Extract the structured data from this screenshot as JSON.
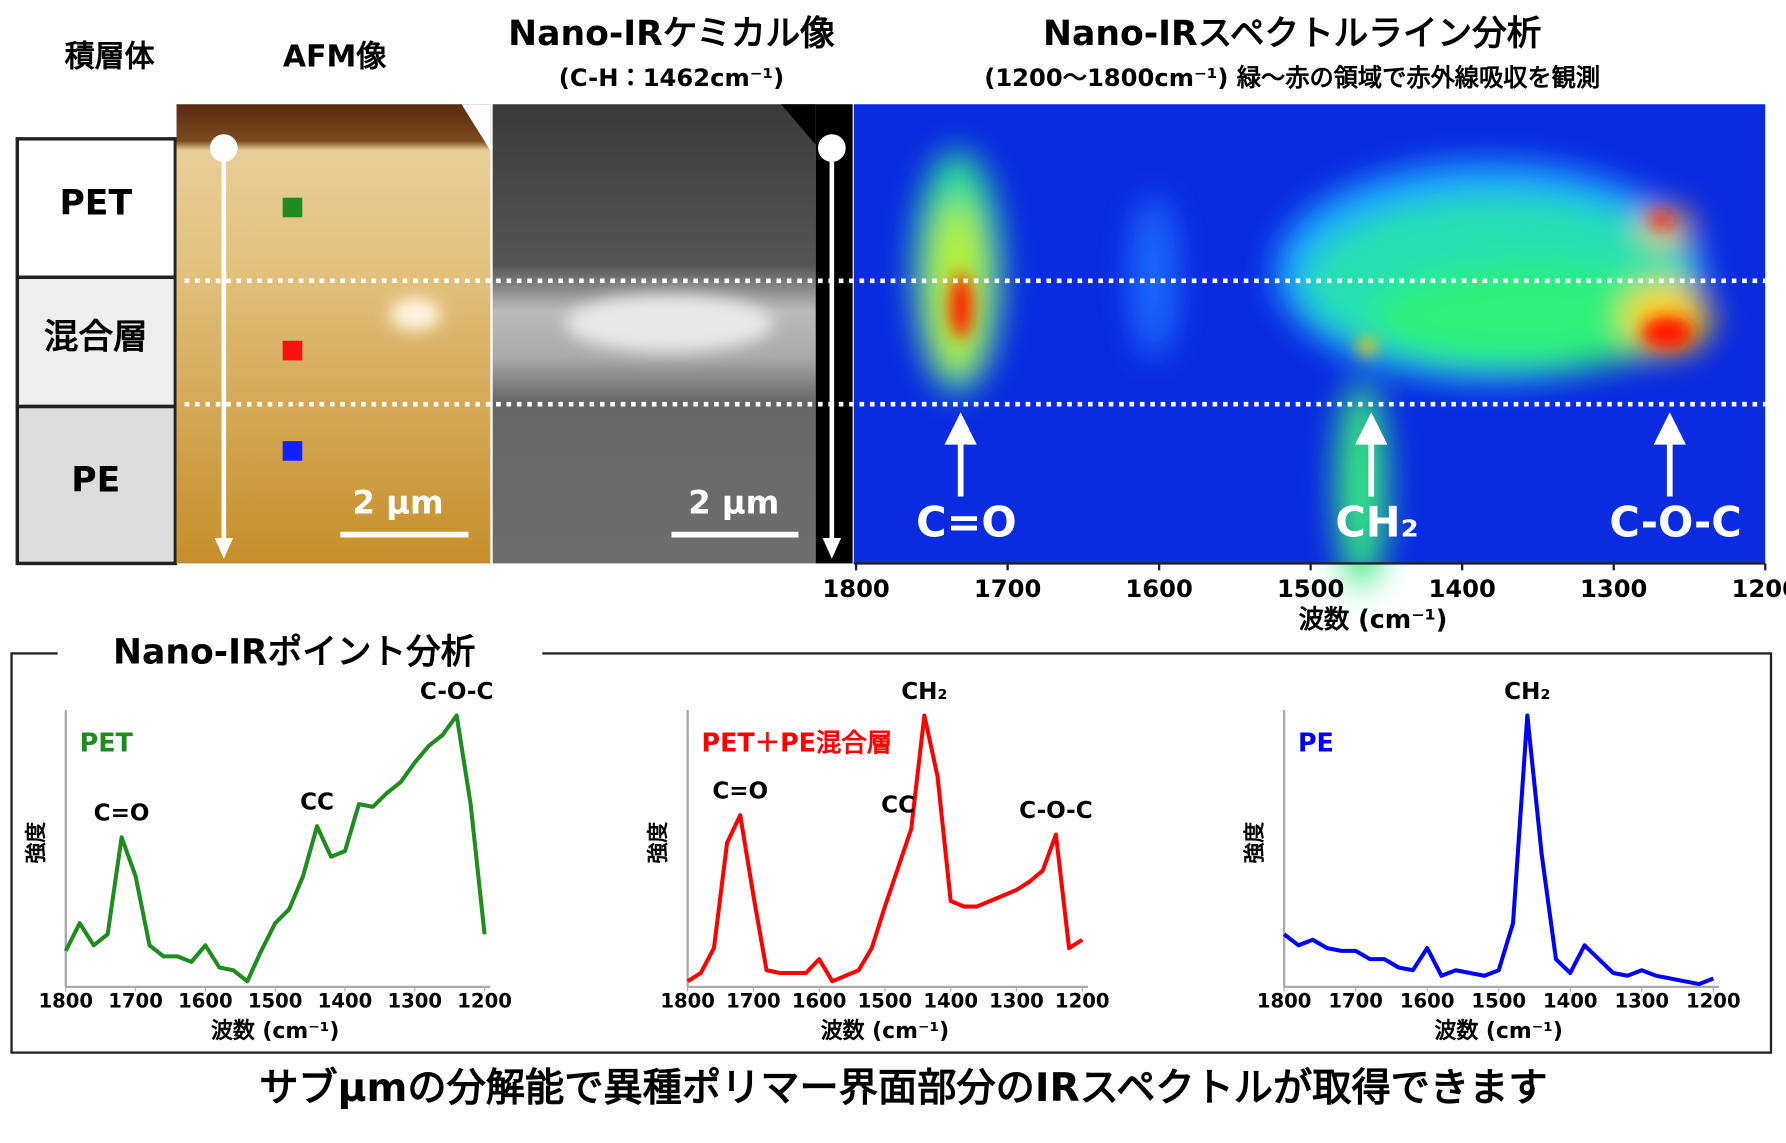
{
  "header": {
    "layer_col": "積層体",
    "afm_col": "AFM像",
    "chem_col": "Nano-IRケミカル像",
    "chem_sub": "(C-H：1462cm⁻¹)",
    "line_col": "Nano-IRスペクトルライン分析",
    "line_sub": "(1200〜1800cm⁻¹) 緑〜赤の領域で赤外線吸収を観測"
  },
  "layers": [
    "PET",
    "混合層",
    "PE"
  ],
  "scale_bars": [
    "2 μm",
    "2 μm"
  ],
  "line_analysis": {
    "xlim": [
      1800,
      1200
    ],
    "xticks": [
      1800,
      1700,
      1600,
      1500,
      1400,
      1300,
      1200
    ],
    "xlabel": "波数 (cm⁻¹)",
    "peaks": [
      {
        "label": "C=O",
        "x": 1731
      },
      {
        "label": "CH₂",
        "x": 1460
      },
      {
        "label": "C-O-C",
        "x": 1263
      }
    ]
  },
  "point_title": "Nano-IRポイント分析",
  "chart_data": [
    {
      "type": "line",
      "xlim": [
        1800,
        1200
      ],
      "ylim": [
        0,
        100
      ],
      "xticks": [
        1800,
        1700,
        1600,
        1500,
        1400,
        1300,
        1200
      ],
      "xlabel": "波数 (cm⁻¹)",
      "ylabel": "強度",
      "x": [
        1800,
        1780,
        1760,
        1740,
        1720,
        1700,
        1680,
        1660,
        1640,
        1620,
        1600,
        1580,
        1560,
        1540,
        1520,
        1500,
        1480,
        1460,
        1440,
        1420,
        1400,
        1380,
        1360,
        1340,
        1320,
        1300,
        1280,
        1260,
        1240,
        1220,
        1200
      ],
      "series": [
        {
          "name": "PET",
          "color": "#1e8c1e",
          "values": [
            13,
            23,
            15,
            19,
            54,
            40,
            15,
            11,
            11,
            9,
            15,
            7,
            6,
            2,
            13,
            23,
            28,
            40,
            58,
            47,
            49,
            66,
            65,
            70,
            74,
            81,
            87,
            91,
            98,
            66,
            19
          ]
        }
      ],
      "annotations": [
        {
          "text": "C=O",
          "x": 1720
        },
        {
          "text": "CC",
          "x": 1440
        },
        {
          "text": "C-O-C",
          "x": 1240
        }
      ]
    },
    {
      "type": "line",
      "xlim": [
        1800,
        1200
      ],
      "ylim": [
        0,
        100
      ],
      "xticks": [
        1800,
        1700,
        1600,
        1500,
        1400,
        1300,
        1200
      ],
      "xlabel": "波数 (cm⁻¹)",
      "ylabel": "強度",
      "x": [
        1800,
        1780,
        1760,
        1740,
        1720,
        1700,
        1680,
        1660,
        1640,
        1620,
        1600,
        1580,
        1560,
        1540,
        1520,
        1500,
        1480,
        1460,
        1440,
        1420,
        1400,
        1380,
        1360,
        1340,
        1320,
        1300,
        1280,
        1260,
        1240,
        1220,
        1200
      ],
      "series": [
        {
          "name": "PET＋PE混合層",
          "color": "#ff0000",
          "values": [
            2,
            5,
            14,
            52,
            62,
            33,
            6,
            5,
            5,
            5,
            10,
            2,
            4,
            6,
            14,
            29,
            43,
            57,
            98,
            76,
            31,
            29,
            29,
            31,
            33,
            35,
            38,
            42,
            55,
            14,
            17
          ]
        }
      ],
      "annotations": [
        {
          "text": "C=O",
          "x": 1720
        },
        {
          "text": "CC",
          "x": 1480
        },
        {
          "text": "CH₂",
          "x": 1440
        },
        {
          "text": "C-O-C",
          "x": 1240
        }
      ]
    },
    {
      "type": "line",
      "xlim": [
        1800,
        1200
      ],
      "ylim": [
        0,
        100
      ],
      "xticks": [
        1800,
        1700,
        1600,
        1500,
        1400,
        1300,
        1200
      ],
      "xlabel": "波数 (cm⁻¹)",
      "ylabel": "強度",
      "x": [
        1800,
        1780,
        1760,
        1740,
        1720,
        1700,
        1680,
        1660,
        1640,
        1620,
        1600,
        1580,
        1560,
        1540,
        1520,
        1500,
        1480,
        1460,
        1440,
        1420,
        1400,
        1380,
        1360,
        1340,
        1320,
        1300,
        1280,
        1260,
        1240,
        1220,
        1200
      ],
      "series": [
        {
          "name": "PE",
          "color": "#0000ff",
          "values": [
            19,
            15,
            17,
            14,
            13,
            13,
            10,
            10,
            7,
            6,
            14,
            4,
            6,
            5,
            4,
            6,
            23,
            98,
            48,
            10,
            5,
            15,
            10,
            5,
            4,
            6,
            4,
            3,
            2,
            1,
            3
          ]
        }
      ],
      "annotations": [
        {
          "text": "CH₂",
          "x": 1460
        }
      ]
    }
  ],
  "footer": "サブμmの分解能で異種ポリマー界面部分のIRスペクトルが取得できます"
}
